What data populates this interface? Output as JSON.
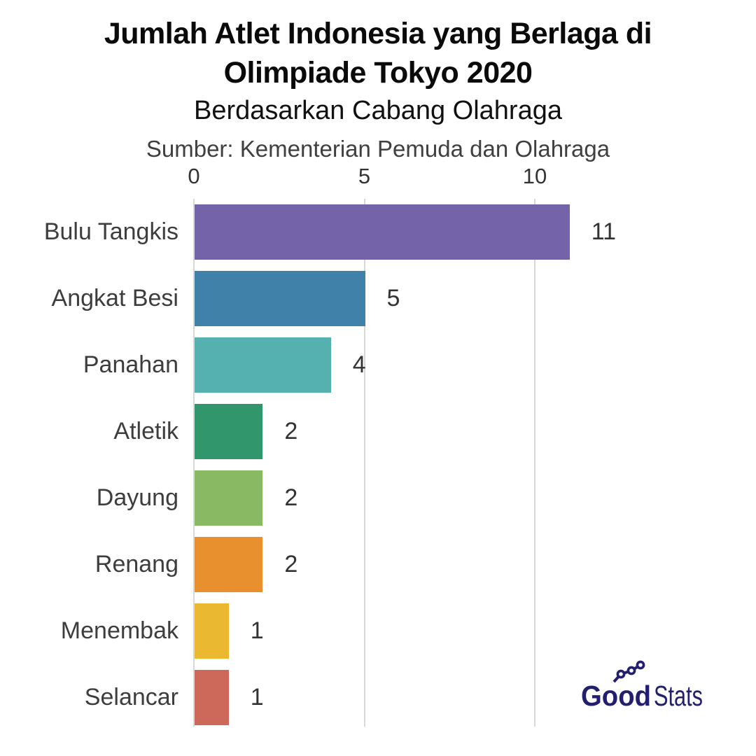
{
  "header": {
    "title_line1": "Jumlah Atlet Indonesia yang Berlaga di",
    "title_line2": "Olimpiade Tokyo 2020",
    "subtitle": "Berdasarkan Cabang Olahraga",
    "source": "Sumber: Kementerian Pemuda dan Olahraga"
  },
  "logo": {
    "part_bold": "Good",
    "part_light": "Stats",
    "color": "#231f6e"
  },
  "chart_data": {
    "type": "bar",
    "orientation": "horizontal",
    "title": "Jumlah Atlet Indonesia yang Berlaga di Olimpiade Tokyo 2020",
    "subtitle": "Berdasarkan Cabang Olahraga",
    "source": "Sumber: Kementerian Pemuda dan Olahraga",
    "categories": [
      "Bulu Tangkis",
      "Angkat Besi",
      "Panahan",
      "Atletik",
      "Dayung",
      "Renang",
      "Menembak",
      "Selancar"
    ],
    "values": [
      11,
      5,
      4,
      2,
      2,
      2,
      1,
      1
    ],
    "bar_colors": [
      "#7463a8",
      "#3f81a9",
      "#55b1b0",
      "#31966c",
      "#89ba63",
      "#e88f2e",
      "#ebb931",
      "#cc695b"
    ],
    "x_ticks": [
      0,
      5,
      10
    ],
    "xlim": [
      0,
      11.5
    ],
    "grid": true,
    "gridline_color": "#d8d8d8",
    "value_labels": true,
    "legend": "none",
    "text_color": "#3d3d3d"
  }
}
